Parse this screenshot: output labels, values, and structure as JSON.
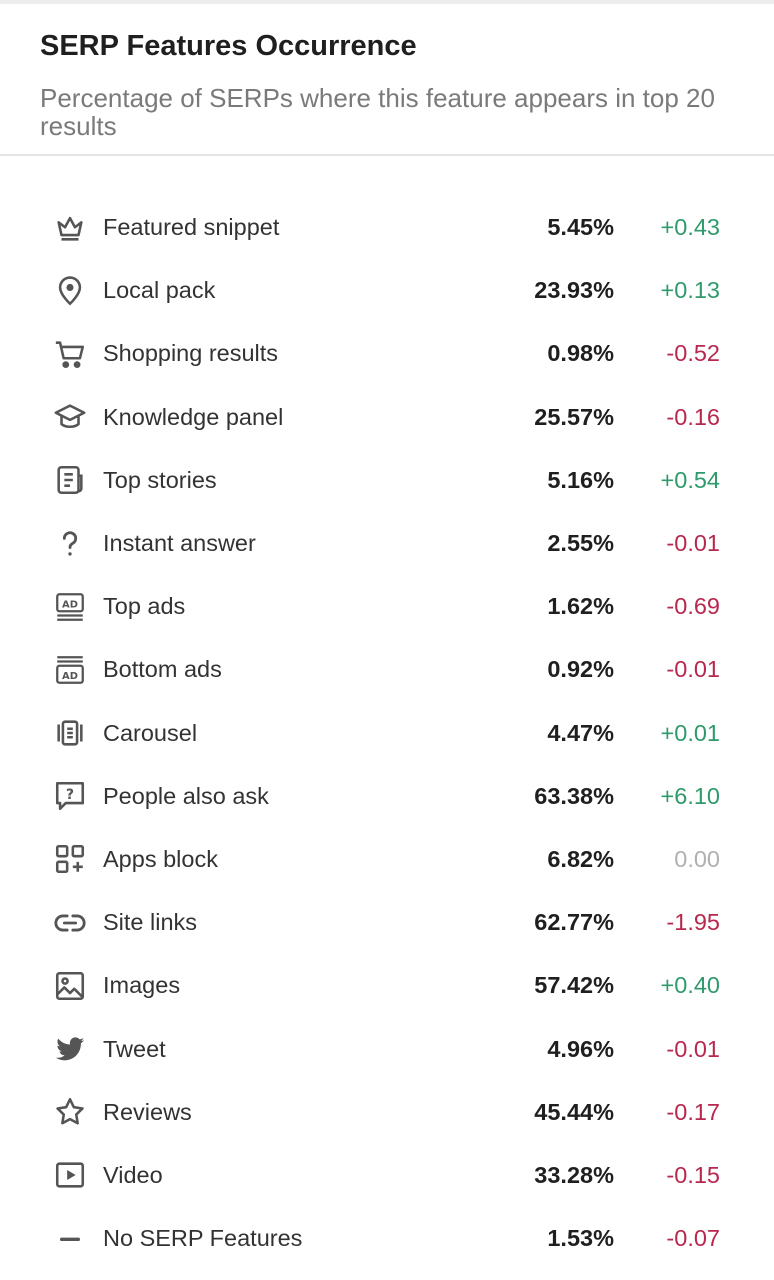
{
  "header": {
    "title": "SERP Features Occurrence",
    "subtitle": "Percentage of SERPs where this feature appears in top 20 results"
  },
  "colors": {
    "positive": "#2f9a6c",
    "negative": "#b8284e",
    "neutral": "#b0b0b0",
    "icon": "#555555"
  },
  "features": [
    {
      "icon": "crown-icon",
      "label": "Featured snippet",
      "value": "5.45%",
      "delta": "+0.43",
      "trend": "pos"
    },
    {
      "icon": "location-pin-icon",
      "label": "Local pack",
      "value": "23.93%",
      "delta": "+0.13",
      "trend": "pos"
    },
    {
      "icon": "cart-icon",
      "label": "Shopping results",
      "value": "0.98%",
      "delta": "-0.52",
      "trend": "neg"
    },
    {
      "icon": "graduation-cap-icon",
      "label": "Knowledge panel",
      "value": "25.57%",
      "delta": "-0.16",
      "trend": "neg"
    },
    {
      "icon": "newspaper-icon",
      "label": "Top stories",
      "value": "5.16%",
      "delta": "+0.54",
      "trend": "pos"
    },
    {
      "icon": "question-mark-icon",
      "label": "Instant answer",
      "value": "2.55%",
      "delta": "-0.01",
      "trend": "neg"
    },
    {
      "icon": "ad-top-icon",
      "label": "Top ads",
      "value": "1.62%",
      "delta": "-0.69",
      "trend": "neg"
    },
    {
      "icon": "ad-bottom-icon",
      "label": "Bottom ads",
      "value": "0.92%",
      "delta": "-0.01",
      "trend": "neg"
    },
    {
      "icon": "carousel-icon",
      "label": "Carousel",
      "value": "4.47%",
      "delta": "+0.01",
      "trend": "pos"
    },
    {
      "icon": "question-bubble-icon",
      "label": "People also ask",
      "value": "63.38%",
      "delta": "+6.10",
      "trend": "pos"
    },
    {
      "icon": "apps-grid-icon",
      "label": "Apps block",
      "value": "6.82%",
      "delta": "0.00",
      "trend": "zero"
    },
    {
      "icon": "link-icon",
      "label": "Site links",
      "value": "62.77%",
      "delta": "-1.95",
      "trend": "neg"
    },
    {
      "icon": "image-icon",
      "label": "Images",
      "value": "57.42%",
      "delta": "+0.40",
      "trend": "pos"
    },
    {
      "icon": "twitter-bird-icon",
      "label": "Tweet",
      "value": "4.96%",
      "delta": "-0.01",
      "trend": "neg"
    },
    {
      "icon": "star-icon",
      "label": "Reviews",
      "value": "45.44%",
      "delta": "-0.17",
      "trend": "neg"
    },
    {
      "icon": "video-play-icon",
      "label": "Video",
      "value": "33.28%",
      "delta": "-0.15",
      "trend": "neg"
    },
    {
      "icon": "dash-icon",
      "label": "No SERP Features",
      "value": "1.53%",
      "delta": "-0.07",
      "trend": "neg"
    }
  ]
}
